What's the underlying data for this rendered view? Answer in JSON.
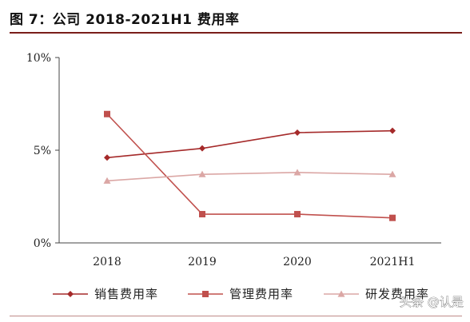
{
  "header": {
    "title": "图 7：公司 2018-2021H1 费用率"
  },
  "chart_data": {
    "type": "line",
    "categories": [
      "2018",
      "2019",
      "2020",
      "2021H1"
    ],
    "y_ticks": [
      "0%",
      "5%",
      "10%"
    ],
    "ylim": [
      0,
      10
    ],
    "grid": false,
    "legend_position": "bottom",
    "series": [
      {
        "name": "销售费用率",
        "values": [
          4.6,
          5.1,
          5.95,
          6.05
        ],
        "color": "#a52a2a",
        "marker": "diamond"
      },
      {
        "name": "管理费用率",
        "values": [
          6.95,
          1.55,
          1.55,
          1.35
        ],
        "color": "#c0504d",
        "marker": "square"
      },
      {
        "name": "研发费用率",
        "values": [
          3.35,
          3.7,
          3.8,
          3.7
        ],
        "color": "#dba7a5",
        "marker": "triangle"
      }
    ]
  },
  "watermark": {
    "text": "头条 @认是"
  }
}
